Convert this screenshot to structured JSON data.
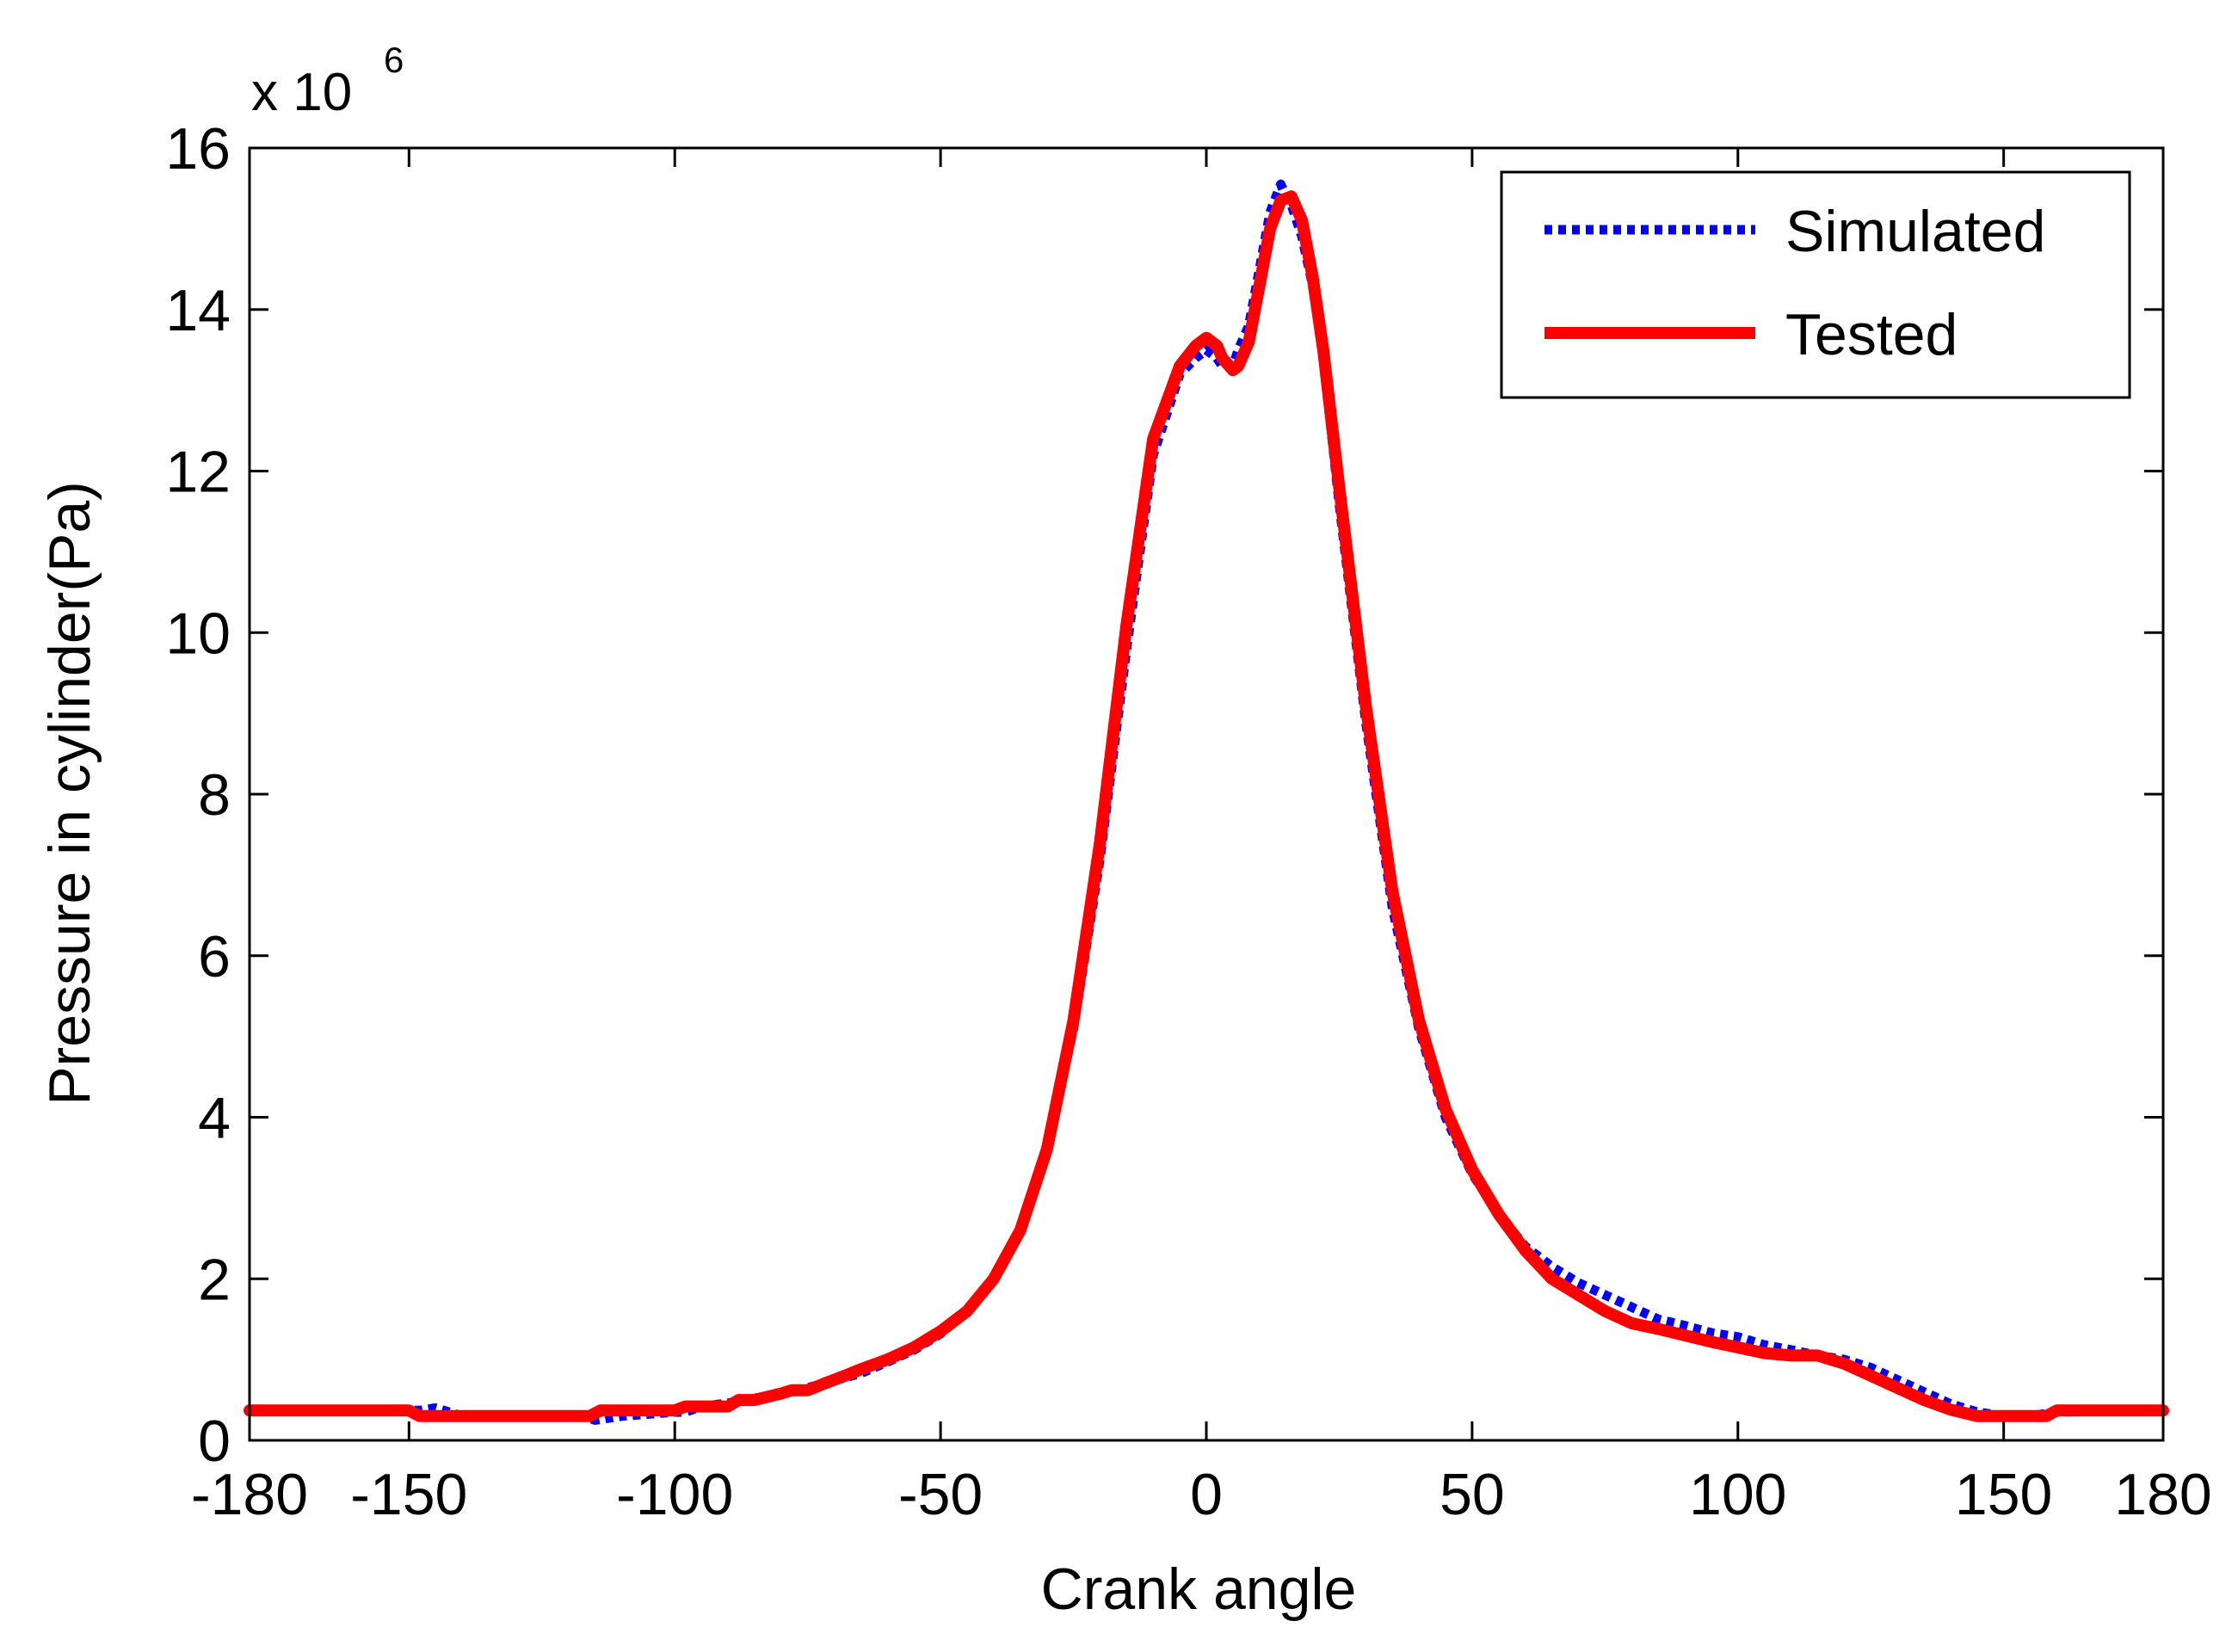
{
  "chart_data": {
    "type": "line",
    "title": "",
    "xlabel": "Crank angle",
    "ylabel": "Pressure in cylinder(Pa)",
    "xlim": [
      -180,
      180
    ],
    "ylim": [
      0,
      16
    ],
    "xticks": [
      -180,
      -150,
      -100,
      -50,
      0,
      50,
      100,
      150,
      180
    ],
    "yticks": [
      0,
      2,
      4,
      6,
      8,
      10,
      12,
      14,
      16
    ],
    "y_multiplier": {
      "base": "x 10",
      "exponent": "6"
    },
    "grid": false,
    "legend_position": "top-right",
    "series": [
      {
        "name": "Simulated",
        "color": "#0000ff",
        "style": "dotted",
        "x": [
          -180,
          -150,
          -148,
          -145,
          -140,
          -130,
          -120,
          -117,
          -115,
          -110,
          -100,
          -98,
          -95,
          -90,
          -85,
          -80,
          -75,
          -70,
          -65,
          -60,
          -55,
          -50,
          -45,
          -40,
          -35,
          -30,
          -25,
          -20,
          -15,
          -10,
          -5,
          -2,
          0,
          2,
          3,
          5,
          6,
          8,
          10,
          12,
          14,
          15,
          16,
          18,
          20,
          22,
          25,
          30,
          35,
          40,
          45,
          50,
          55,
          60,
          65,
          70,
          75,
          80,
          85,
          90,
          95,
          100,
          105,
          110,
          115,
          120,
          125,
          130,
          135,
          140,
          145,
          150,
          155,
          160,
          170,
          180
        ],
        "y": [
          0.37,
          0.37,
          0.37,
          0.4,
          0.3,
          0.3,
          0.3,
          0.3,
          0.25,
          0.3,
          0.35,
          0.35,
          0.42,
          0.46,
          0.52,
          0.58,
          0.65,
          0.74,
          0.83,
          0.97,
          1.12,
          1.32,
          1.6,
          2.0,
          2.6,
          3.6,
          5.1,
          7.2,
          9.8,
          12.2,
          13.2,
          13.4,
          13.5,
          13.4,
          13.3,
          13.3,
          13.5,
          13.8,
          14.5,
          15.2,
          15.55,
          15.4,
          15.3,
          14.9,
          14.3,
          13.4,
          11.6,
          8.9,
          6.6,
          5.1,
          4.0,
          3.3,
          2.8,
          2.4,
          2.15,
          1.95,
          1.8,
          1.65,
          1.5,
          1.42,
          1.33,
          1.28,
          1.18,
          1.12,
          1.05,
          1.0,
          0.9,
          0.75,
          0.6,
          0.45,
          0.35,
          0.3,
          0.3,
          0.35,
          0.37,
          0.37
        ]
      },
      {
        "name": "Tested",
        "color": "#ff0000",
        "style": "solid",
        "x": [
          -180,
          -150,
          -148,
          -140,
          -130,
          -120,
          -116,
          -114,
          -110,
          -100,
          -98,
          -95,
          -90,
          -88,
          -85,
          -80,
          -78,
          -75,
          -72,
          -70,
          -68,
          -65,
          -60,
          -55,
          -50,
          -45,
          -40,
          -35,
          -30,
          -25,
          -20,
          -15,
          -10,
          -5,
          -2,
          0,
          2,
          3,
          5,
          6,
          8,
          10,
          12,
          14,
          16,
          18,
          20,
          22,
          25,
          30,
          35,
          40,
          45,
          50,
          55,
          60,
          65,
          70,
          75,
          80,
          85,
          90,
          95,
          100,
          105,
          110,
          115,
          120,
          125,
          130,
          135,
          140,
          145,
          150,
          155,
          158,
          160,
          170,
          180
        ],
        "y": [
          0.37,
          0.37,
          0.3,
          0.3,
          0.3,
          0.3,
          0.3,
          0.37,
          0.37,
          0.37,
          0.42,
          0.42,
          0.42,
          0.5,
          0.5,
          0.58,
          0.62,
          0.62,
          0.7,
          0.75,
          0.8,
          0.88,
          1.0,
          1.15,
          1.35,
          1.6,
          2.0,
          2.6,
          3.6,
          5.2,
          7.4,
          10.1,
          12.4,
          13.3,
          13.55,
          13.65,
          13.55,
          13.4,
          13.25,
          13.3,
          13.6,
          14.3,
          15.0,
          15.35,
          15.4,
          15.1,
          14.4,
          13.5,
          11.8,
          9.1,
          6.8,
          5.2,
          4.1,
          3.35,
          2.8,
          2.35,
          2.0,
          1.8,
          1.6,
          1.45,
          1.38,
          1.3,
          1.22,
          1.15,
          1.08,
          1.05,
          1.05,
          0.95,
          0.8,
          0.65,
          0.5,
          0.38,
          0.3,
          0.3,
          0.3,
          0.3,
          0.37,
          0.37,
          0.37
        ]
      }
    ]
  }
}
